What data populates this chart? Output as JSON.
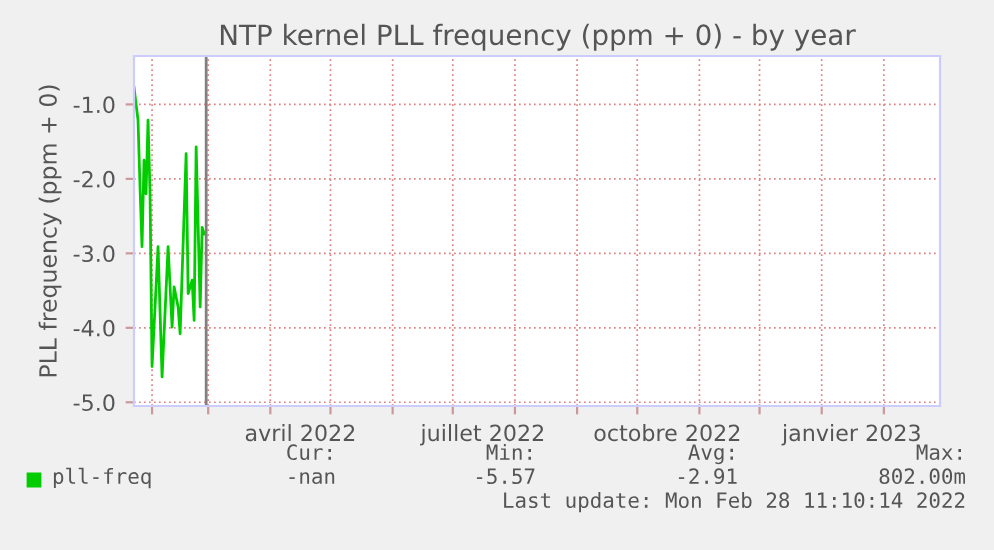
{
  "chart_data": {
    "type": "line",
    "title": "NTP kernel PLL frequency (ppm + 0) - by year",
    "ylabel": "PLL frequency (ppm + 0)",
    "x": [
      "2022-01-23",
      "2022-01-25",
      "2022-01-26",
      "2022-01-27",
      "2022-01-28",
      "2022-01-29",
      "2022-01-30",
      "2022-01-31",
      "2022-02-01",
      "2022-02-04",
      "2022-02-06",
      "2022-02-09",
      "2022-02-11",
      "2022-02-12",
      "2022-02-14",
      "2022-02-15",
      "2022-02-18",
      "2022-02-19",
      "2022-02-21",
      "2022-02-22",
      "2022-02-23",
      "2022-02-25",
      "2022-02-26",
      "2022-02-27"
    ],
    "series": [
      {
        "name": "pll-freq",
        "color": "#00cc00",
        "values": [
          -0.77,
          -1.21,
          -2.11,
          -2.91,
          -1.75,
          -2.2,
          -1.21,
          -2.2,
          -4.52,
          -2.91,
          -4.66,
          -2.91,
          -3.99,
          -3.45,
          -3.72,
          -4.08,
          -1.66,
          -3.54,
          -3.36,
          -3.9,
          -1.57,
          -3.72,
          -2.65,
          -2.74
        ]
      }
    ],
    "xlim": [
      "2022-01-23",
      "2023-03-01"
    ],
    "xticks": [
      {
        "value": "2022-02-01",
        "label": null
      },
      {
        "value": "2022-03-01",
        "label": null
      },
      {
        "value": "2022-04-01",
        "label": null
      },
      {
        "value": "2022-04-16",
        "label": "avril 2022"
      },
      {
        "value": "2022-05-01",
        "label": null
      },
      {
        "value": "2022-06-01",
        "label": null
      },
      {
        "value": "2022-07-01",
        "label": null
      },
      {
        "value": "2022-07-16",
        "label": "juillet 2022"
      },
      {
        "value": "2022-08-01",
        "label": null
      },
      {
        "value": "2022-09-01",
        "label": null
      },
      {
        "value": "2022-10-01",
        "label": null
      },
      {
        "value": "2022-10-16",
        "label": "octobre 2022"
      },
      {
        "value": "2022-11-01",
        "label": null
      },
      {
        "value": "2022-12-01",
        "label": null
      },
      {
        "value": "2023-01-01",
        "label": null
      },
      {
        "value": "2023-01-16",
        "label": "janvier 2023"
      },
      {
        "value": "2023-02-01",
        "label": null
      }
    ],
    "ylim": [
      -5.05,
      -0.35
    ],
    "yticks": [
      {
        "value": -1,
        "label": "-1.0"
      },
      {
        "value": -2,
        "label": "-2.0"
      },
      {
        "value": -3,
        "label": "-3.0"
      },
      {
        "value": -4,
        "label": "-4.0"
      },
      {
        "value": -5,
        "label": "-5.0"
      }
    ],
    "ref_lines": [
      {
        "axis": "x",
        "value": "2022-02-28",
        "label": null,
        "color": "#808080"
      }
    ],
    "grid": true,
    "legend": "bottom",
    "line_style": "solid",
    "marker": "none",
    "annotations": [
      "Cur:",
      "Min:",
      "Avg:",
      "Max:",
      "-nan",
      "-5.57",
      "-2.91",
      "802.00m",
      "Last update: Mon Feb 28 11:10:14 2022"
    ]
  }
}
